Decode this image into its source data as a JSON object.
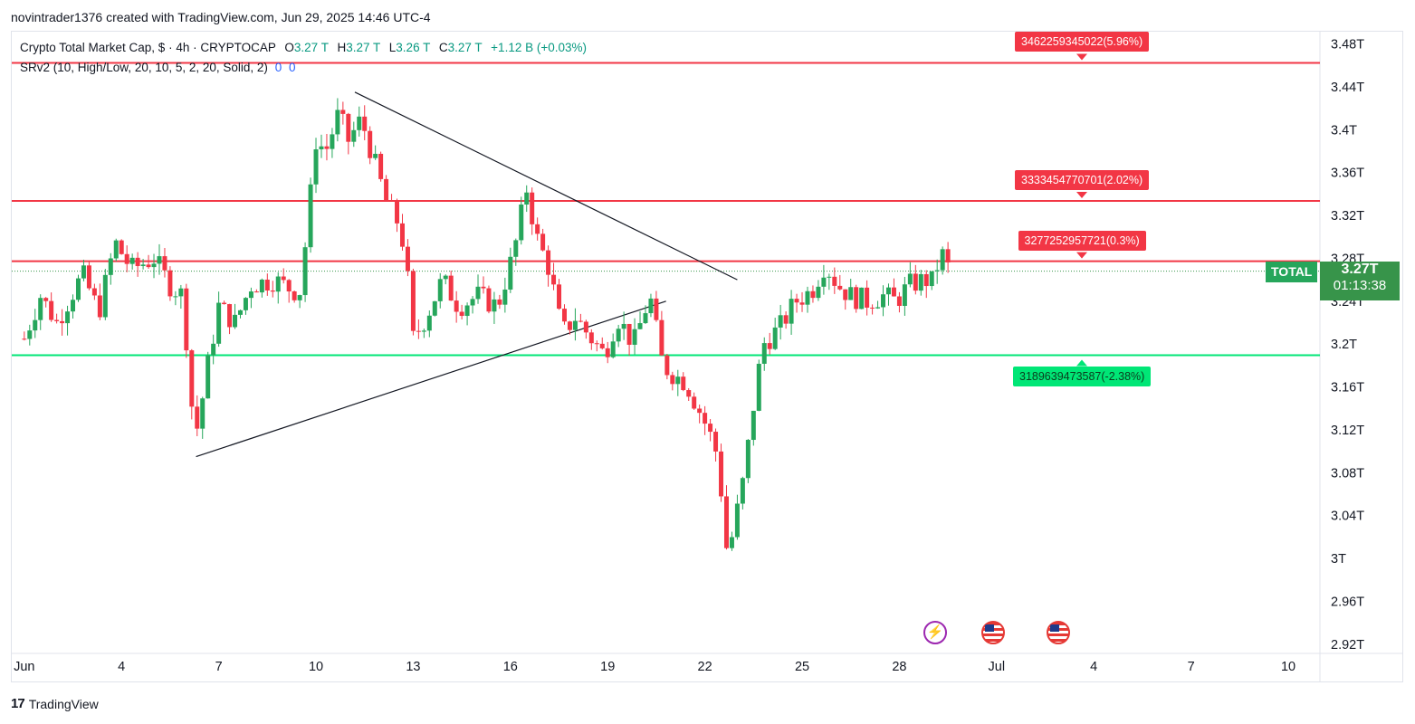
{
  "header": {
    "credit": "novintrader1376 created with TradingView.com, Jun 29, 2025 14:46 UTC-4"
  },
  "legend": {
    "symbol_line": "Crypto Total Market Cap, $ · 4h · CRYPTOCAP",
    "o_label": "O",
    "o_value": "3.27 T",
    "h_label": "H",
    "h_value": "3.27 T",
    "l_label": "L",
    "l_value": "3.26 T",
    "c_label": "C",
    "c_value": "3.27 T",
    "change": "+1.12 B (+0.03%)",
    "indicator": "SRv2 (10, High/Low, 20, 10, 5, 2, 20, Solid, 2)",
    "indicator_v1": "0",
    "indicator_v2": "0"
  },
  "price_scale": {
    "symbol": "TOTAL",
    "last_price": "3.27T",
    "countdown": "01:13:38"
  },
  "footer": {
    "logo": "17",
    "brand": "TradingView"
  },
  "colors": {
    "up": "#26a65b",
    "down": "#f23645",
    "resistance": "#f23645",
    "support": "#00e676",
    "trendline": "#131722"
  },
  "chart_data": {
    "type": "candlestick",
    "title": "Crypto Total Market Cap",
    "interval": "4h",
    "y_unit": "T",
    "ylim": [
      2.92,
      3.48
    ],
    "y_ticks": [
      "3.48T",
      "3.44T",
      "3.4T",
      "3.36T",
      "3.32T",
      "3.28T",
      "3.24T",
      "3.2T",
      "3.16T",
      "3.12T",
      "3.08T",
      "3.04T",
      "3T",
      "2.96T",
      "2.92T"
    ],
    "x_ticks": [
      {
        "label": "Jun",
        "day": 1
      },
      {
        "label": "4",
        "day": 4
      },
      {
        "label": "7",
        "day": 7
      },
      {
        "label": "10",
        "day": 10
      },
      {
        "label": "13",
        "day": 13
      },
      {
        "label": "16",
        "day": 16
      },
      {
        "label": "19",
        "day": 19
      },
      {
        "label": "22",
        "day": 22
      },
      {
        "label": "25",
        "day": 25
      },
      {
        "label": "28",
        "day": 28
      },
      {
        "label": "Jul",
        "day": 31
      },
      {
        "label": "4",
        "day": 34
      },
      {
        "label": "7",
        "day": 37
      },
      {
        "label": "10",
        "day": 40
      }
    ],
    "xlim_days": [
      0.6,
      40.2
    ],
    "levels": [
      {
        "value": 3.4623,
        "label": "3462259345022(5.96%)",
        "kind": "resistance"
      },
      {
        "value": 3.3335,
        "label": "3333454770701(2.02%)",
        "kind": "resistance"
      },
      {
        "value": 3.2773,
        "label": "3277252957721(0.3%)",
        "kind": "resistance"
      },
      {
        "value": 3.1896,
        "label": "3189639473587(-2.38%)",
        "kind": "support"
      }
    ],
    "last_price_value": 3.268,
    "trendlines": [
      {
        "day1": 11.2,
        "v1": 3.435,
        "day2": 23.0,
        "v2": 3.26
      },
      {
        "day1": 6.3,
        "v1": 3.095,
        "day2": 20.8,
        "v2": 3.24
      }
    ],
    "events": [
      {
        "type": "bolt",
        "day": 29.1
      },
      {
        "type": "us-flag",
        "day": 30.9
      },
      {
        "type": "us-flag",
        "day": 32.9
      }
    ],
    "path": [
      [
        1.0,
        3.205
      ],
      [
        1.5,
        3.245
      ],
      [
        2.0,
        3.22
      ],
      [
        2.8,
        3.265
      ],
      [
        3.3,
        3.23
      ],
      [
        3.8,
        3.295
      ],
      [
        4.3,
        3.27
      ],
      [
        5.0,
        3.28
      ],
      [
        5.5,
        3.255
      ],
      [
        5.9,
        3.245
      ],
      [
        6.15,
        3.145
      ],
      [
        6.35,
        3.12
      ],
      [
        6.6,
        3.17
      ],
      [
        7.0,
        3.235
      ],
      [
        7.5,
        3.22
      ],
      [
        8.0,
        3.255
      ],
      [
        8.7,
        3.26
      ],
      [
        9.3,
        3.25
      ],
      [
        9.5,
        3.25
      ],
      [
        9.7,
        3.3
      ],
      [
        10.0,
        3.39
      ],
      [
        10.3,
        3.38
      ],
      [
        10.7,
        3.415
      ],
      [
        11.0,
        3.39
      ],
      [
        11.4,
        3.41
      ],
      [
        11.7,
        3.38
      ],
      [
        12.2,
        3.33
      ],
      [
        12.6,
        3.31
      ],
      [
        12.8,
        3.27
      ],
      [
        13.0,
        3.205
      ],
      [
        13.4,
        3.225
      ],
      [
        13.9,
        3.26
      ],
      [
        14.4,
        3.235
      ],
      [
        15.0,
        3.245
      ],
      [
        15.6,
        3.235
      ],
      [
        16.1,
        3.285
      ],
      [
        16.5,
        3.345
      ],
      [
        16.8,
        3.3
      ],
      [
        17.2,
        3.27
      ],
      [
        17.6,
        3.21
      ],
      [
        18.0,
        3.225
      ],
      [
        18.5,
        3.205
      ],
      [
        18.9,
        3.19
      ],
      [
        19.3,
        3.225
      ],
      [
        19.8,
        3.2
      ],
      [
        20.3,
        3.245
      ],
      [
        20.7,
        3.18
      ],
      [
        21.1,
        3.17
      ],
      [
        21.4,
        3.165
      ],
      [
        21.8,
        3.14
      ],
      [
        22.1,
        3.12
      ],
      [
        22.4,
        3.095
      ],
      [
        22.7,
        3.0
      ],
      [
        22.9,
        3.03
      ],
      [
        23.2,
        3.075
      ],
      [
        23.6,
        3.165
      ],
      [
        23.8,
        3.2
      ],
      [
        24.3,
        3.215
      ],
      [
        24.8,
        3.24
      ],
      [
        25.3,
        3.25
      ],
      [
        25.7,
        3.275
      ],
      [
        26.1,
        3.255
      ],
      [
        26.5,
        3.245
      ],
      [
        27.0,
        3.24
      ],
      [
        27.5,
        3.245
      ],
      [
        27.9,
        3.24
      ],
      [
        28.3,
        3.255
      ],
      [
        28.8,
        3.26
      ],
      [
        29.0,
        3.258
      ],
      [
        29.3,
        3.285
      ],
      [
        29.6,
        3.265
      ]
    ]
  }
}
